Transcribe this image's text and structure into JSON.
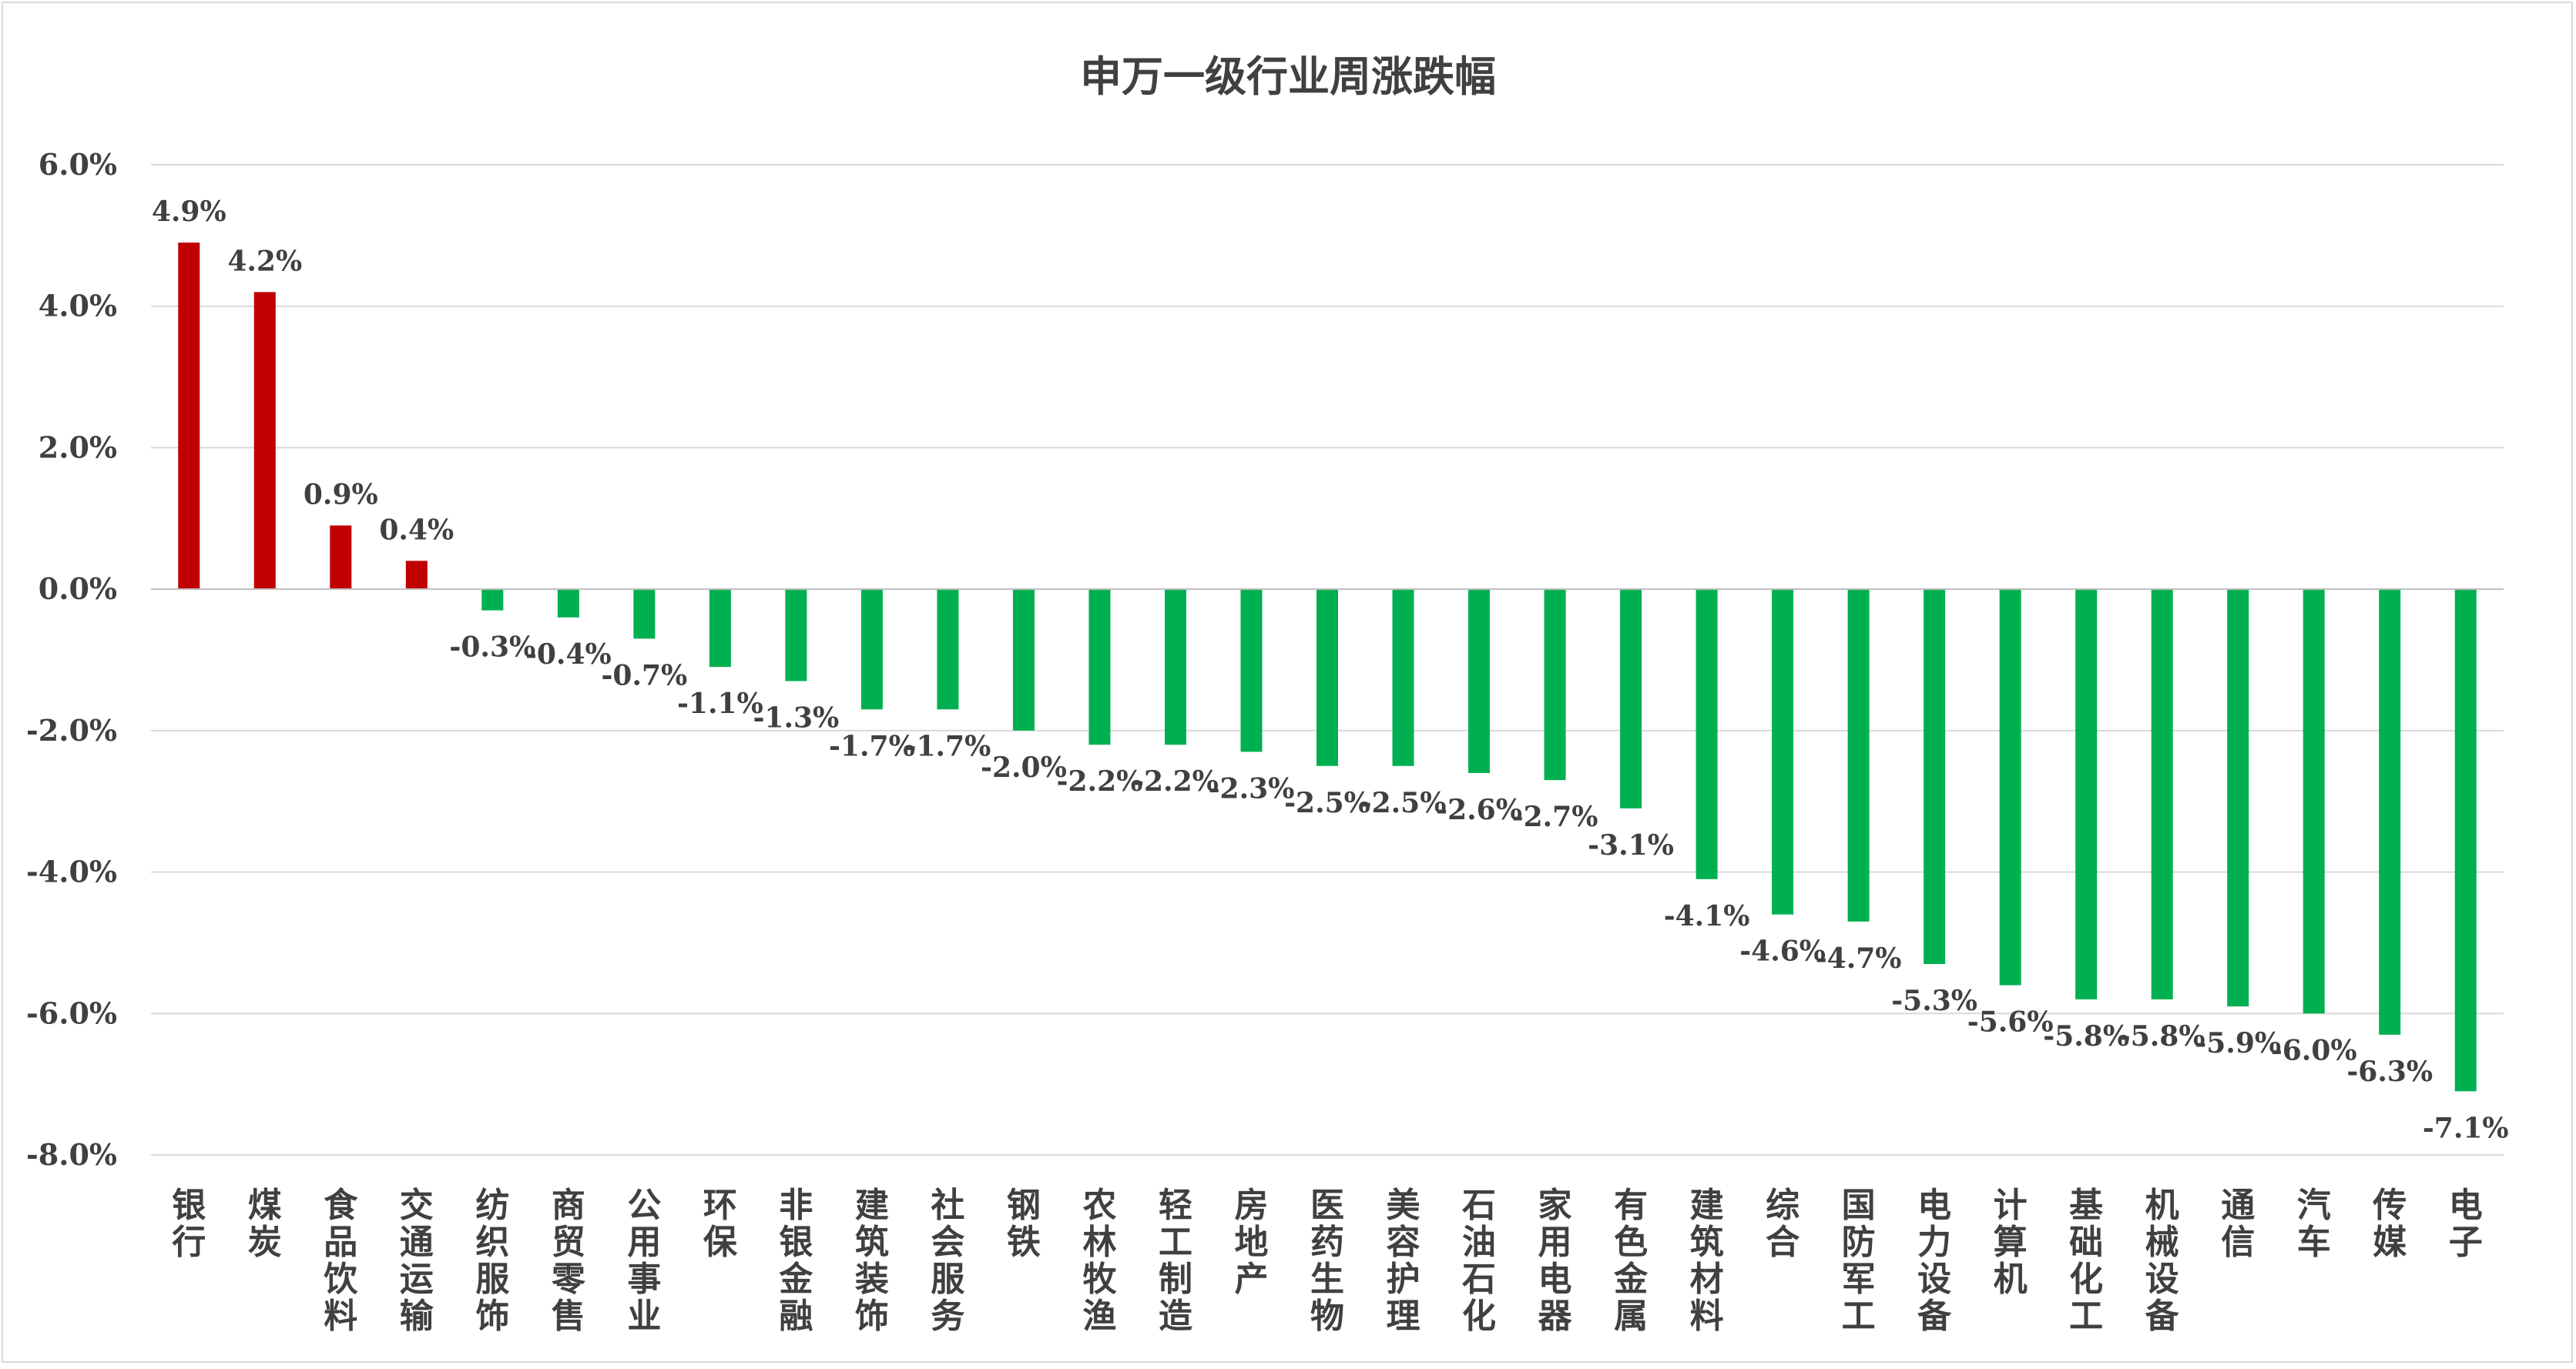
{
  "chart_data": {
    "type": "bar",
    "title": "申万一级行业周涨跌幅",
    "xlabel": "",
    "ylabel": "",
    "ylim": [
      -8.0,
      6.0
    ],
    "yticks": [
      6.0,
      4.0,
      2.0,
      0.0,
      -2.0,
      -4.0,
      -6.0,
      -8.0
    ],
    "ytick_labels": [
      "6.0%",
      "4.0%",
      "2.0%",
      "0.0%",
      "-2.0%",
      "-4.0%",
      "-6.0%",
      "-8.0%"
    ],
    "grid": true,
    "legend": "none",
    "colors": {
      "positive": "#c00000",
      "negative": "#00b050",
      "grid": "#d9d9d9",
      "text": "#404040"
    },
    "categories": [
      "银行",
      "煤炭",
      "食品饮料",
      "交通运输",
      "纺织服饰",
      "商贸零售",
      "公用事业",
      "环保",
      "非银金融",
      "建筑装饰",
      "社会服务",
      "钢铁",
      "农林牧渔",
      "轻工制造",
      "房地产",
      "医药生物",
      "美容护理",
      "石油石化",
      "家用电器",
      "有色金属",
      "建筑材料",
      "综合",
      "国防军工",
      "电力设备",
      "计算机",
      "基础化工",
      "机械设备",
      "通信",
      "汽车",
      "传媒",
      "电子"
    ],
    "values": [
      4.9,
      4.2,
      0.9,
      0.4,
      -0.3,
      -0.4,
      -0.7,
      -1.1,
      -1.3,
      -1.7,
      -1.7,
      -2.0,
      -2.2,
      -2.2,
      -2.3,
      -2.5,
      -2.5,
      -2.6,
      -2.7,
      -3.1,
      -4.1,
      -4.6,
      -4.7,
      -5.3,
      -5.6,
      -5.8,
      -5.8,
      -5.9,
      -6.0,
      -6.3,
      -7.1
    ],
    "data_labels": [
      "4.9%",
      "4.2%",
      "0.9%",
      "0.4%",
      "-0.3%",
      "-0.4%",
      "-0.7%",
      "-1.1%",
      "-1.3%",
      "-1.7%",
      "-1.7%",
      "-2.0%",
      "-2.2%",
      "-2.2%",
      "-2.3%",
      "-2.5%",
      "-2.5%",
      "-2.6%",
      "-2.7%",
      "-3.1%",
      "-4.1%",
      "-4.6%",
      "-4.7%",
      "-5.3%",
      "-5.6%",
      "-5.8%",
      "-5.8%",
      "-5.9%",
      "-6.0%",
      "-6.3%",
      "-7.1%"
    ]
  }
}
